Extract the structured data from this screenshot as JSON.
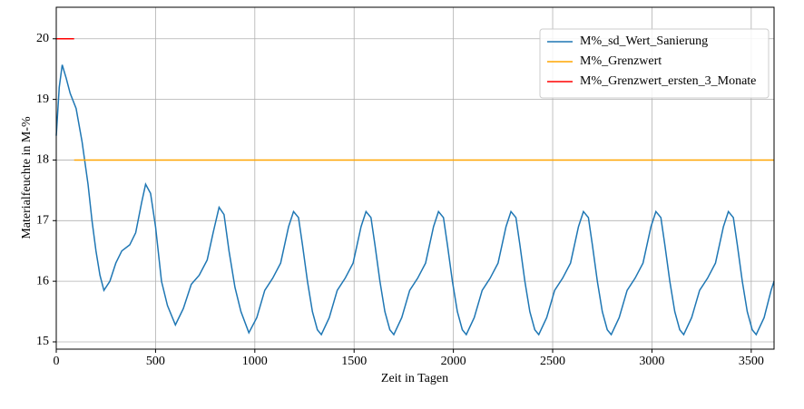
{
  "chart_data": {
    "type": "line",
    "xlabel": "Zeit in Tagen",
    "ylabel": "Materialfeuchte in M-%",
    "xlim": [
      0,
      3615
    ],
    "ylim": [
      14.88,
      20.52
    ],
    "xticks": [
      0,
      500,
      1000,
      1500,
      2000,
      2500,
      3000,
      3500
    ],
    "yticks": [
      15,
      16,
      17,
      18,
      19,
      20
    ],
    "grid": true,
    "legend": "upper right",
    "series": [
      {
        "name": "M%_sd_Wert_Sanierung",
        "color": "#1f77b4",
        "x": [
          0,
          15,
          30,
          50,
          70,
          100,
          130,
          160,
          180,
          200,
          220,
          240,
          270,
          300,
          330,
          370,
          400,
          430,
          450,
          475,
          500,
          530,
          560,
          600,
          640,
          680,
          720,
          760,
          790,
          820,
          845,
          870,
          900,
          930,
          970,
          1010,
          1050,
          1090,
          1130,
          1170,
          1195,
          1220,
          1240,
          1265,
          1290,
          1315,
          1335,
          1375,
          1415,
          1455,
          1495,
          1535,
          1560,
          1585,
          1605,
          1630,
          1655,
          1680,
          1700,
          1740,
          1780,
          1820,
          1860,
          1900,
          1925,
          1950,
          1970,
          1995,
          2020,
          2045,
          2065,
          2105,
          2145,
          2185,
          2225,
          2265,
          2290,
          2315,
          2335,
          2360,
          2385,
          2410,
          2430,
          2470,
          2510,
          2550,
          2590,
          2630,
          2655,
          2680,
          2700,
          2725,
          2750,
          2775,
          2795,
          2835,
          2875,
          2915,
          2955,
          2995,
          3020,
          3045,
          3065,
          3090,
          3115,
          3140,
          3160,
          3200,
          3240,
          3280,
          3320,
          3360,
          3385,
          3410,
          3430,
          3455,
          3480,
          3505,
          3525,
          3565,
          3600,
          3615
        ],
        "values": [
          18.4,
          19.2,
          19.57,
          19.35,
          19.1,
          18.85,
          18.3,
          17.6,
          17.0,
          16.5,
          16.1,
          15.85,
          16.0,
          16.3,
          16.5,
          16.6,
          16.8,
          17.3,
          17.6,
          17.45,
          16.9,
          16.0,
          15.6,
          15.28,
          15.55,
          15.95,
          16.1,
          16.35,
          16.8,
          17.22,
          17.1,
          16.5,
          15.9,
          15.5,
          15.15,
          15.4,
          15.85,
          16.05,
          16.3,
          16.9,
          17.15,
          17.05,
          16.6,
          16.0,
          15.5,
          15.2,
          15.12,
          15.4,
          15.85,
          16.05,
          16.3,
          16.9,
          17.15,
          17.05,
          16.6,
          16.0,
          15.5,
          15.2,
          15.12,
          15.4,
          15.85,
          16.05,
          16.3,
          16.9,
          17.15,
          17.05,
          16.6,
          16.0,
          15.5,
          15.2,
          15.12,
          15.4,
          15.85,
          16.05,
          16.3,
          16.9,
          17.15,
          17.05,
          16.6,
          16.0,
          15.5,
          15.2,
          15.12,
          15.4,
          15.85,
          16.05,
          16.3,
          16.9,
          17.15,
          17.05,
          16.6,
          16.0,
          15.5,
          15.2,
          15.12,
          15.4,
          15.85,
          16.05,
          16.3,
          16.9,
          17.15,
          17.05,
          16.6,
          16.0,
          15.5,
          15.2,
          15.12,
          15.4,
          15.85,
          16.05,
          16.3,
          16.9,
          17.15,
          17.05,
          16.6,
          16.0,
          15.5,
          15.2,
          15.12,
          15.4,
          15.85,
          16.0
        ]
      },
      {
        "name": "M%_Grenzwert",
        "color": "#ffa500",
        "x": [
          90,
          3615
        ],
        "values": [
          18,
          18
        ]
      },
      {
        "name": "M%_Grenzwert_ersten_3_Monate",
        "color": "#ff0000",
        "x": [
          0,
          90
        ],
        "values": [
          20,
          20
        ]
      }
    ]
  }
}
